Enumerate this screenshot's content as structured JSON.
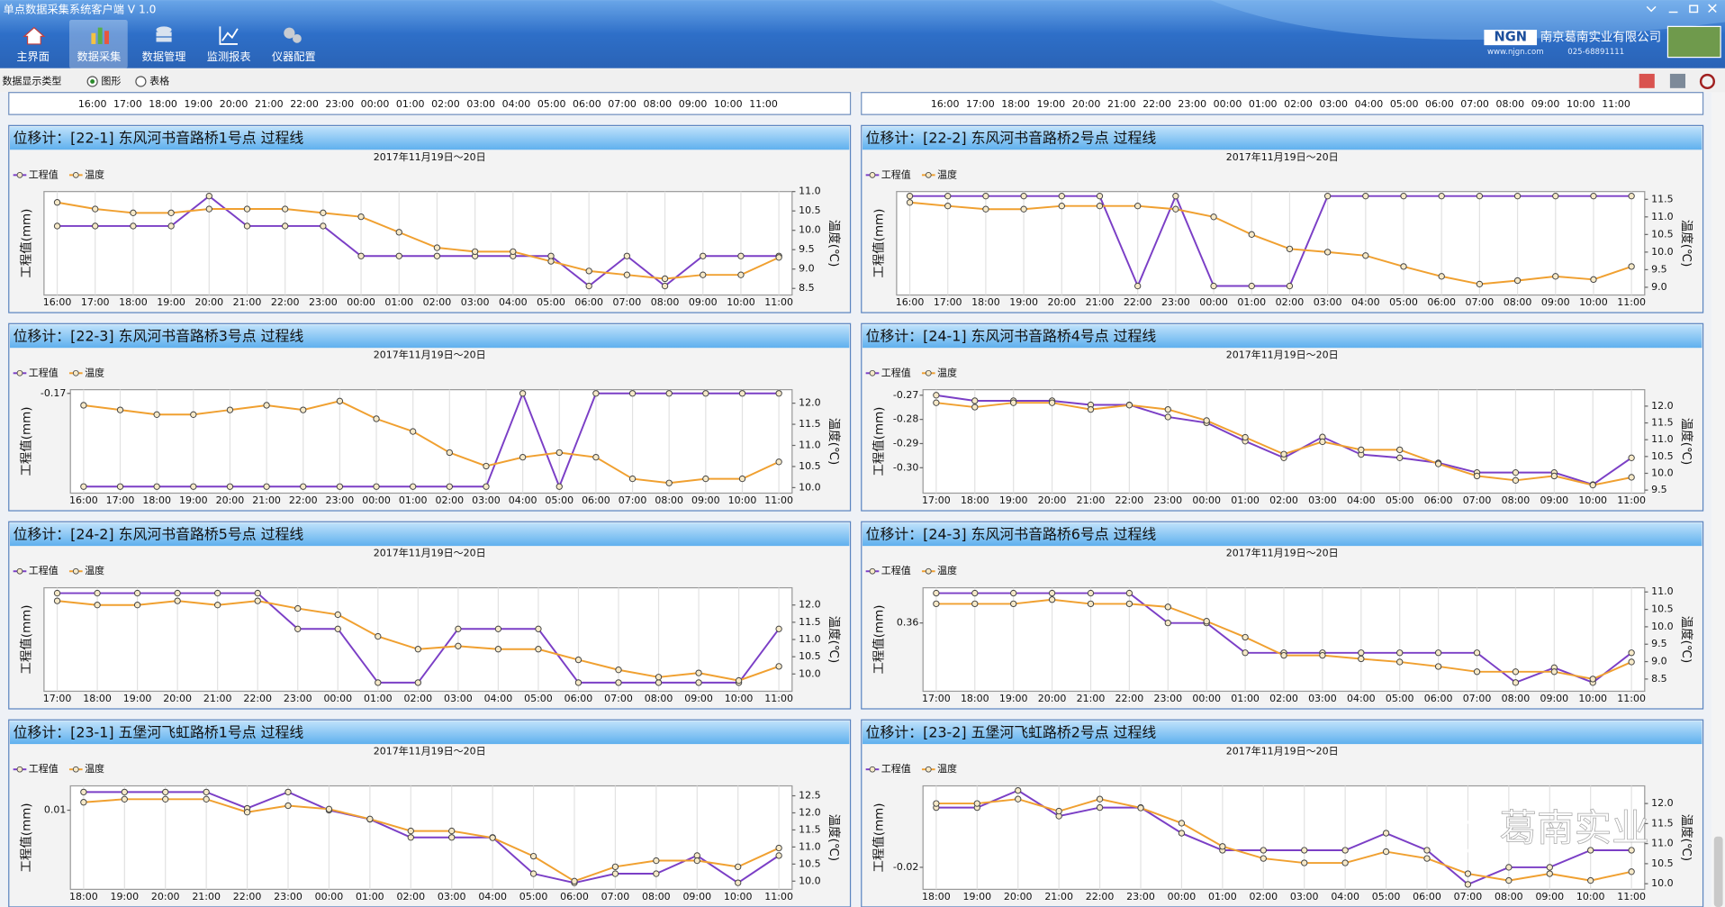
{
  "window": {
    "title": "单点数据采集系统客户端 V 1.0",
    "logo": "NGN",
    "company": "南京葛南实业有限公司",
    "website": "www.njgn.com",
    "phone": "025-68891111"
  },
  "toolbar": [
    "主界面",
    "数据采集",
    "数据管理",
    "监测报表",
    "仪器配置"
  ],
  "display_type": {
    "label": "数据显示类型",
    "options": [
      "图形",
      "表格"
    ]
  },
  "watermark": "葛南实业",
  "clipped_panels": [
    {
      "categories": [
        "16:00",
        "17:00",
        "18:00",
        "19:00",
        "20:00",
        "21:00",
        "22:00",
        "23:00",
        "00:00",
        "01:00",
        "02:00",
        "03:00",
        "04:00",
        "05:00",
        "06:00",
        "07:00",
        "08:00",
        "09:00",
        "10:00",
        "11:00"
      ]
    },
    {
      "categories": [
        "16:00",
        "17:00",
        "18:00",
        "19:00",
        "20:00",
        "21:00",
        "22:00",
        "23:00",
        "00:00",
        "01:00",
        "02:00",
        "03:00",
        "04:00",
        "05:00",
        "06:00",
        "07:00",
        "08:00",
        "09:00",
        "10:00",
        "11:00"
      ]
    }
  ],
  "chart_data": [
    {
      "type": "line",
      "title": "位移计：[22-1] 东风河书音路桥1号点 过程线",
      "subtitle": "2017年11月19日～20日",
      "y_label": "工程值(mm)",
      "y2_label": "温度(℃)",
      "categories": [
        "16:00",
        "17:00",
        "18:00",
        "19:00",
        "20:00",
        "21:00",
        "22:00",
        "23:00",
        "00:00",
        "01:00",
        "02:00",
        "03:00",
        "04:00",
        "05:00",
        "06:00",
        "07:00",
        "08:00",
        "09:00",
        "10:00",
        "11:00"
      ],
      "ylim": [
        0.197,
        0.2315
      ],
      "y2lim": [
        8.33,
        11.0
      ],
      "y2ticks": [
        8.5,
        {
          "value": 9,
          "label": "9.0"
        },
        9.5,
        {
          "value": 10,
          "label": "10.0"
        },
        10.5,
        {
          "value": 11,
          "label": "11.0"
        }
      ],
      "series": [
        {
          "name": "工程值",
          "color": "#7b3fc6",
          "axis": "y",
          "values": [
            0.22,
            0.22,
            0.22,
            0.22,
            0.23,
            0.22,
            0.22,
            0.22,
            0.21,
            0.21,
            0.21,
            0.21,
            0.21,
            0.21,
            0.2,
            0.21,
            0.2,
            0.21,
            0.21,
            0.21
          ]
        },
        {
          "name": "温度",
          "color": "#f0a030",
          "axis": "y2",
          "values": [
            10.72,
            10.55,
            10.45,
            10.45,
            10.55,
            10.55,
            10.55,
            10.45,
            10.35,
            9.95,
            9.55,
            9.45,
            9.45,
            9.2,
            8.95,
            8.85,
            8.75,
            8.85,
            8.85,
            9.3
          ]
        }
      ]
    },
    {
      "type": "line",
      "title": "位移计：[22-2] 东风河书音路桥2号点 过程线",
      "subtitle": "2017年11月19日～20日",
      "y_label": "工程值(mm)",
      "y2_label": "温度(℃)",
      "categories": [
        "16:00",
        "17:00",
        "18:00",
        "19:00",
        "20:00",
        "21:00",
        "22:00",
        "23:00",
        "00:00",
        "01:00",
        "02:00",
        "03:00",
        "04:00",
        "05:00",
        "06:00",
        "07:00",
        "08:00",
        "09:00",
        "10:00",
        "11:00"
      ],
      "ylim": [
        -0.001,
        0.0105
      ],
      "y2lim": [
        8.78,
        11.72
      ],
      "y2ticks": [
        {
          "value": 9,
          "label": "9.0"
        },
        9.5,
        {
          "value": 10,
          "label": "10.0"
        },
        10.5,
        {
          "value": 11,
          "label": "11.0"
        },
        11.5
      ],
      "series": [
        {
          "name": "工程值",
          "color": "#7b3fc6",
          "axis": "y",
          "values": [
            0.01,
            0.01,
            0.01,
            0.01,
            0.01,
            0.01,
            0,
            0.01,
            0,
            0,
            0,
            0.01,
            0.01,
            0.01,
            0.01,
            0.01,
            0.01,
            0.01,
            0.01,
            0.01
          ]
        },
        {
          "name": "温度",
          "color": "#f0a030",
          "axis": "y2",
          "values": [
            11.41,
            11.31,
            11.22,
            11.22,
            11.31,
            11.31,
            11.31,
            11.22,
            11.0,
            10.5,
            10.09,
            10.0,
            9.9,
            9.59,
            9.31,
            9.09,
            9.19,
            9.31,
            9.22,
            9.59
          ]
        }
      ]
    },
    {
      "type": "line",
      "title": "位移计：[22-3] 东风河书音路桥3号点 过程线",
      "subtitle": "2017年11月19日～20日",
      "y_label": "工程值(mm)",
      "y2_label": "温度(℃)",
      "categories": [
        "16:00",
        "17:00",
        "18:00",
        "19:00",
        "20:00",
        "21:00",
        "22:00",
        "23:00",
        "00:00",
        "01:00",
        "02:00",
        "03:00",
        "04:00",
        "05:00",
        "06:00",
        "07:00",
        "08:00",
        "09:00",
        "10:00",
        "11:00"
      ],
      "ylim": [
        -0.1807,
        -0.1696
      ],
      "yticks": [
        -0.17
      ],
      "y2lim": [
        9.87,
        12.32
      ],
      "y2ticks": [
        {
          "value": 10,
          "label": "10.0"
        },
        10.5,
        {
          "value": 11,
          "label": "11.0"
        },
        11.5,
        {
          "value": 12,
          "label": "12.0"
        }
      ],
      "series": [
        {
          "name": "工程值",
          "color": "#7b3fc6",
          "axis": "y",
          "values": [
            -0.18,
            -0.18,
            -0.18,
            -0.18,
            -0.18,
            -0.18,
            -0.18,
            -0.18,
            -0.18,
            -0.18,
            -0.18,
            -0.18,
            -0.17,
            -0.18,
            -0.17,
            -0.17,
            -0.17,
            -0.17,
            -0.17,
            -0.17
          ]
        },
        {
          "name": "温度",
          "color": "#f0a030",
          "axis": "y2",
          "values": [
            11.95,
            11.84,
            11.73,
            11.73,
            11.84,
            11.95,
            11.84,
            12.05,
            11.63,
            11.33,
            10.83,
            10.51,
            10.72,
            10.83,
            10.72,
            10.21,
            10.11,
            10.21,
            10.21,
            10.61
          ]
        }
      ]
    },
    {
      "type": "line",
      "title": "位移计：[24-1] 东风河书音路桥4号点 过程线",
      "subtitle": "2017年11月19日～20日",
      "y_label": "工程值(mm)",
      "y2_label": "温度(℃)",
      "categories": [
        "17:00",
        "18:00",
        "19:00",
        "20:00",
        "21:00",
        "22:00",
        "23:00",
        "00:00",
        "01:00",
        "02:00",
        "03:00",
        "04:00",
        "05:00",
        "06:00",
        "07:00",
        "08:00",
        "09:00",
        "10:00",
        "11:00"
      ],
      "ylim": [
        -0.3105,
        -0.2677
      ],
      "yticks": [
        {
          "value": -0.3,
          "label": "-0.30"
        },
        -0.29,
        -0.28,
        -0.27
      ],
      "y2lim": [
        9.41,
        12.49
      ],
      "y2ticks": [
        9.5,
        {
          "value": 10,
          "label": "10.0"
        },
        10.5,
        {
          "value": 11,
          "label": "11.0"
        },
        11.5,
        {
          "value": 12,
          "label": "12.0"
        }
      ],
      "series": [
        {
          "name": "工程值",
          "color": "#7b3fc6",
          "axis": "y",
          "values": [
            -0.27,
            -0.2723,
            -0.2723,
            -0.2723,
            -0.274,
            -0.274,
            -0.279,
            -0.2814,
            -0.289,
            -0.2959,
            -0.2873,
            -0.2945,
            -0.2959,
            -0.298,
            -0.302,
            -0.302,
            -0.302,
            -0.307,
            -0.2959
          ]
        },
        {
          "name": "温度",
          "color": "#f0a030",
          "axis": "y2",
          "values": [
            12.1,
            11.97,
            12.1,
            12.1,
            11.9,
            12.03,
            11.9,
            11.57,
            11.07,
            10.57,
            10.94,
            10.7,
            10.7,
            10.28,
            9.92,
            9.79,
            9.92,
            9.65,
            9.88
          ]
        }
      ]
    },
    {
      "type": "line",
      "title": "位移计：[24-2] 东风河书音路桥5号点 过程线",
      "subtitle": "2017年11月19日～20日",
      "y_label": "工程值(mm)",
      "y2_label": "温度(℃)",
      "categories": [
        "17:00",
        "18:00",
        "19:00",
        "20:00",
        "21:00",
        "22:00",
        "23:00",
        "00:00",
        "01:00",
        "02:00",
        "03:00",
        "04:00",
        "05:00",
        "06:00",
        "07:00",
        "08:00",
        "09:00",
        "10:00",
        "11:00"
      ],
      "ylim": [
        0.1952,
        0.253
      ],
      "y2lim": [
        9.5,
        12.5
      ],
      "y2ticks": [
        {
          "value": 10,
          "label": "10.0"
        },
        10.5,
        {
          "value": 11,
          "label": "11.0"
        },
        11.5,
        {
          "value": 12,
          "label": "12.0"
        }
      ],
      "series": [
        {
          "name": "工程值",
          "color": "#7b3fc6",
          "axis": "y",
          "values": [
            0.25,
            0.25,
            0.25,
            0.25,
            0.25,
            0.25,
            0.23,
            0.23,
            0.2,
            0.2,
            0.23,
            0.23,
            0.23,
            0.2,
            0.2,
            0.2,
            0.2,
            0.2,
            0.23
          ]
        },
        {
          "name": "温度",
          "color": "#f0a030",
          "axis": "y2",
          "values": [
            12.12,
            12.0,
            12.0,
            12.12,
            12.0,
            12.12,
            11.9,
            11.72,
            11.09,
            10.72,
            10.81,
            10.72,
            10.72,
            10.41,
            10.12,
            9.91,
            10.03,
            9.81,
            10.22
          ]
        }
      ]
    },
    {
      "type": "line",
      "title": "位移计：[24-3] 东风河书音路桥6号点 过程线",
      "subtitle": "2017年11月19日～20日",
      "y_label": "工程值(mm)",
      "y2_label": "温度(℃)",
      "categories": [
        "17:00",
        "18:00",
        "19:00",
        "20:00",
        "21:00",
        "22:00",
        "23:00",
        "00:00",
        "01:00",
        "02:00",
        "03:00",
        "04:00",
        "05:00",
        "06:00",
        "07:00",
        "08:00",
        "09:00",
        "10:00",
        "11:00"
      ],
      "ylim": [
        0.3371,
        0.3718
      ],
      "yticks": [
        0.36
      ],
      "y2lim": [
        8.15,
        11.12
      ],
      "y2ticks": [
        8.5,
        {
          "value": 9,
          "label": "9.0"
        },
        9.5,
        {
          "value": 10,
          "label": "10.0"
        },
        10.5,
        {
          "value": 11,
          "label": "11.0"
        }
      ],
      "series": [
        {
          "name": "工程值",
          "color": "#7b3fc6",
          "axis": "y",
          "values": [
            0.37,
            0.37,
            0.37,
            0.37,
            0.37,
            0.37,
            0.36,
            0.36,
            0.35,
            0.35,
            0.35,
            0.35,
            0.35,
            0.35,
            0.35,
            0.34,
            0.345,
            0.34,
            0.35
          ]
        },
        {
          "name": "温度",
          "color": "#f0a030",
          "axis": "y2",
          "values": [
            10.66,
            10.66,
            10.66,
            10.78,
            10.66,
            10.66,
            10.57,
            10.16,
            9.7,
            9.18,
            9.18,
            9.08,
            8.99,
            8.86,
            8.71,
            8.71,
            8.71,
            8.5,
            8.99
          ]
        }
      ]
    },
    {
      "type": "line",
      "title": "位移计：[23-1] 五堡河飞虹路桥1号点 过程线",
      "subtitle": "2017年11月19日～20日",
      "y_label": "工程值(mm)",
      "y2_label": "温度(℃)",
      "categories": [
        "18:00",
        "19:00",
        "20:00",
        "21:00",
        "22:00",
        "23:00",
        "00:00",
        "01:00",
        "02:00",
        "03:00",
        "04:00",
        "05:00",
        "06:00",
        "07:00",
        "08:00",
        "09:00",
        "10:00",
        "11:00"
      ],
      "ylim": [
        -0.0118,
        0.0167
      ],
      "yticks": [
        0.01
      ],
      "y2lim": [
        9.76,
        12.79
      ],
      "y2ticks": [
        {
          "value": 10,
          "label": "10.0"
        },
        10.5,
        {
          "value": 11,
          "label": "11.0"
        },
        11.5,
        {
          "value": 12,
          "label": "12.0"
        },
        12.5
      ],
      "series": [
        {
          "name": "工程值",
          "color": "#7b3fc6",
          "axis": "y",
          "values": [
            0.015,
            0.015,
            0.015,
            0.015,
            0.0105,
            0.015,
            0.01,
            0.0075,
            0.0025,
            0.0025,
            0.0025,
            -0.0075,
            -0.01,
            -0.0075,
            -0.0075,
            -0.0025,
            -0.01,
            -0.0025
          ]
        },
        {
          "name": "温度",
          "color": "#f0a030",
          "axis": "y2",
          "values": [
            12.31,
            12.4,
            12.4,
            12.4,
            12.02,
            12.21,
            12.11,
            11.82,
            11.47,
            11.47,
            11.27,
            10.73,
            10.0,
            10.42,
            10.6,
            10.6,
            10.42,
            10.97
          ]
        }
      ]
    },
    {
      "type": "line",
      "title": "位移计：[23-2] 五堡河飞虹路桥2号点 过程线",
      "subtitle": "2017年11月19日～20日",
      "y_label": "工程值(mm)",
      "y2_label": "温度(℃)",
      "categories": [
        "18:00",
        "19:00",
        "20:00",
        "21:00",
        "22:00",
        "23:00",
        "00:00",
        "01:00",
        "02:00",
        "03:00",
        "04:00",
        "05:00",
        "06:00",
        "07:00",
        "08:00",
        "09:00",
        "10:00",
        "11:00"
      ],
      "ylim": [
        -0.0329,
        0.0277
      ],
      "yticks": [
        -0.02
      ],
      "y2lim": [
        9.86,
        12.44
      ],
      "y2ticks": [
        {
          "value": 10,
          "label": "10.0"
        },
        10.5,
        {
          "value": 11,
          "label": "11.0"
        },
        11.5,
        {
          "value": 12,
          "label": "12.0"
        }
      ],
      "series": [
        {
          "name": "工程值",
          "color": "#7b3fc6",
          "axis": "y",
          "values": [
            0.015,
            0.015,
            0.025,
            0.01,
            0.015,
            0.015,
            0,
            -0.01,
            -0.01,
            -0.01,
            -0.01,
            0,
            -0.01,
            -0.03,
            -0.02,
            -0.02,
            -0.01,
            -0.01
          ]
        },
        {
          "name": "温度",
          "color": "#f0a030",
          "axis": "y2",
          "values": [
            12.0,
            12.0,
            12.11,
            11.81,
            12.11,
            11.89,
            11.51,
            10.93,
            10.63,
            10.52,
            10.52,
            10.8,
            10.63,
            10.25,
            10.08,
            10.25,
            10.08,
            10.3
          ]
        }
      ]
    }
  ]
}
